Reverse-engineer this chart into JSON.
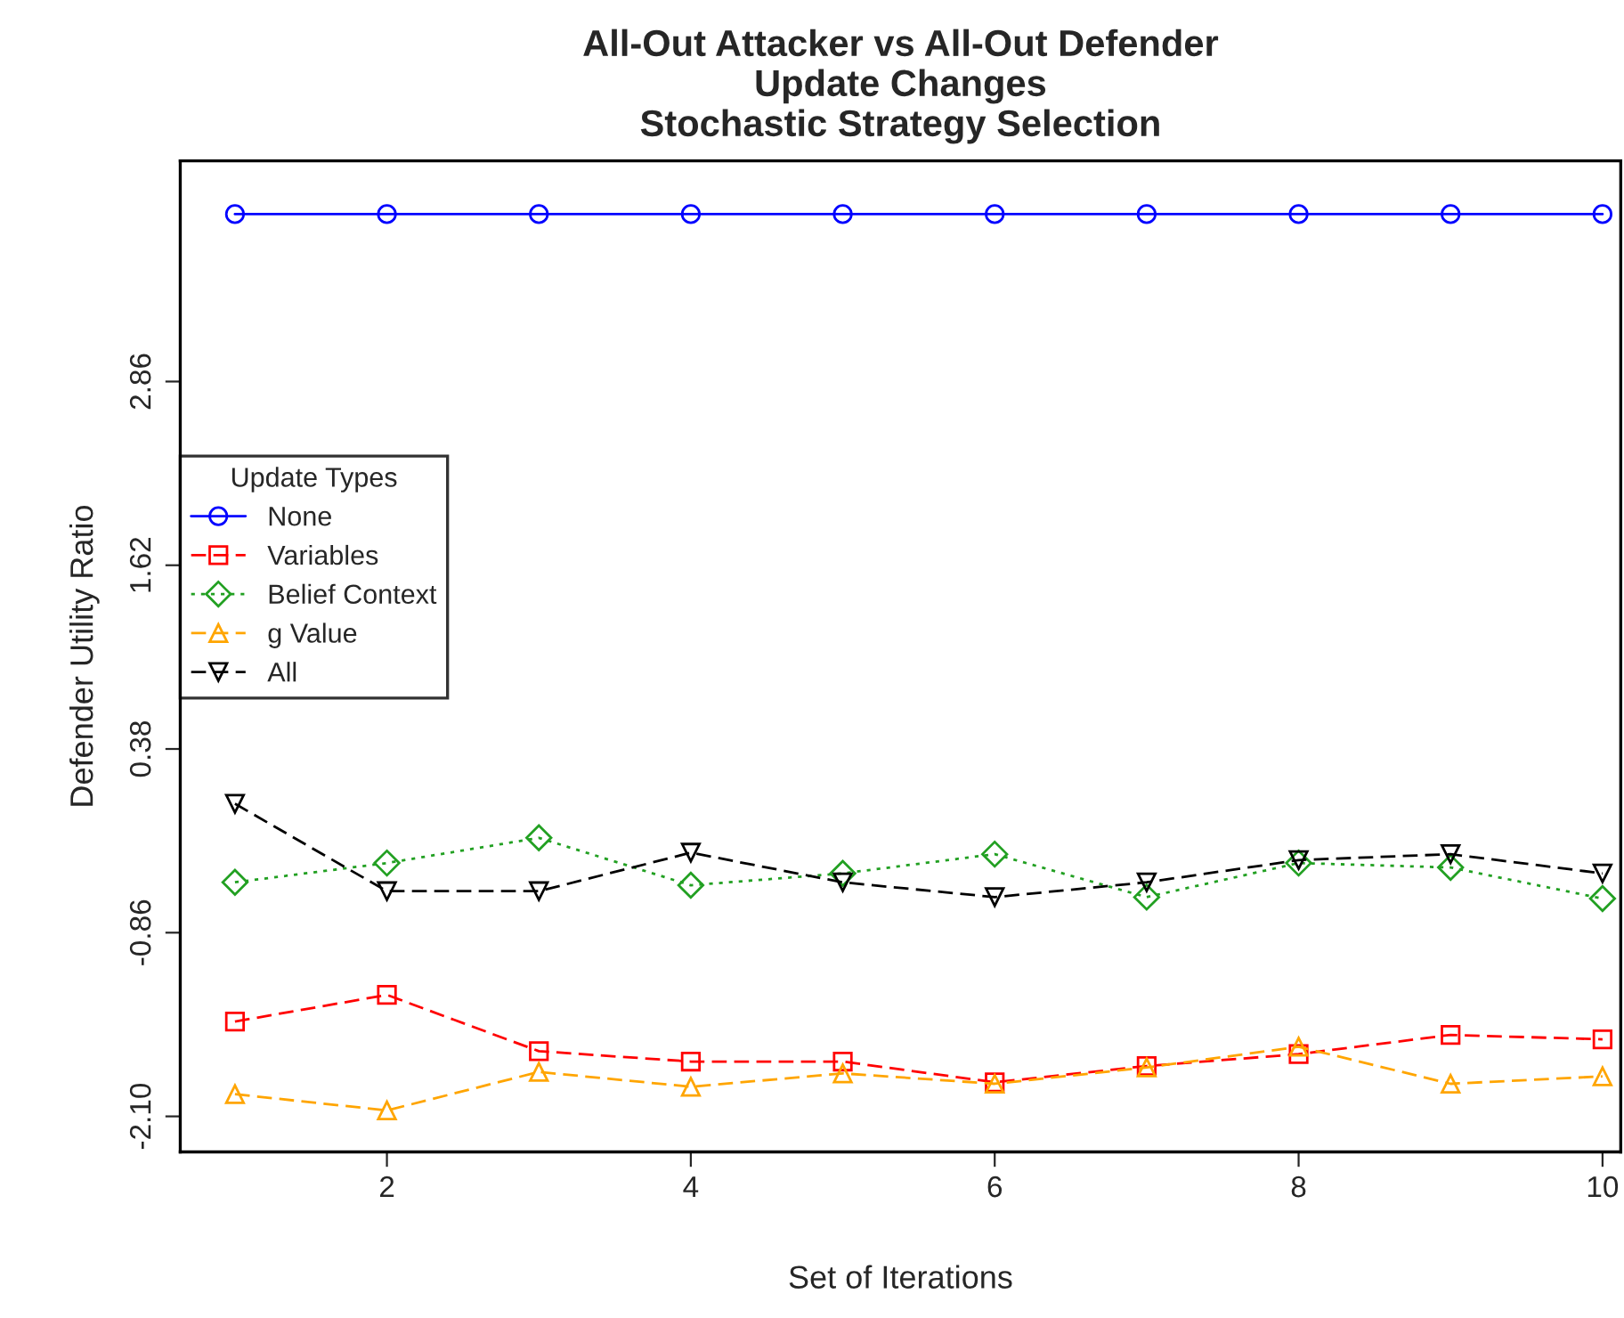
{
  "chart_data": {
    "type": "line",
    "title": "All-Out Attacker vs All-Out Defender\nUpdate Changes\nStochastic Strategy Selection",
    "xlabel": "Set of Iterations",
    "ylabel": "Defender Utility Ratio",
    "legend_title": "Update Types",
    "x": [
      1,
      2,
      3,
      4,
      5,
      6,
      7,
      8,
      9,
      10
    ],
    "series": [
      {
        "name": "None",
        "color": "#0000ff",
        "marker": "circle",
        "line_style": "solid",
        "values": [
          3.99,
          3.99,
          3.99,
          3.99,
          3.99,
          3.99,
          3.99,
          3.99,
          3.99,
          3.99
        ]
      },
      {
        "name": "Variables",
        "color": "#ff0000",
        "marker": "square",
        "line_style": "dashed",
        "values": [
          -1.46,
          -1.28,
          -1.66,
          -1.73,
          -1.73,
          -1.87,
          -1.76,
          -1.68,
          -1.55,
          -1.58
        ]
      },
      {
        "name": "Belief Context",
        "color": "#22a022",
        "marker": "diamond",
        "line_style": "dotted",
        "values": [
          -0.52,
          -0.39,
          -0.22,
          -0.54,
          -0.46,
          -0.33,
          -0.62,
          -0.39,
          -0.42,
          -0.63
        ]
      },
      {
        "name": "g Value",
        "color": "#ffa500",
        "marker": "triangle",
        "line_style": "dashed",
        "values": [
          -1.95,
          -2.06,
          -1.8,
          -1.9,
          -1.81,
          -1.88,
          -1.77,
          -1.63,
          -1.88,
          -1.83
        ]
      },
      {
        "name": "All",
        "color": "#000000",
        "marker": "triangle_down",
        "line_style": "dashed",
        "values": [
          0.01,
          -0.58,
          -0.58,
          -0.32,
          -0.52,
          -0.62,
          -0.52,
          -0.37,
          -0.33,
          -0.46
        ]
      }
    ],
    "xlim": [
      0.64,
      10.12
    ],
    "ylim": [
      -2.34,
      4.35
    ],
    "xticks": [
      2,
      4,
      6,
      8,
      10
    ],
    "yticks": [
      {
        "value": -2.1,
        "label": "-2.10"
      },
      {
        "value": -0.86,
        "label": "-0.86"
      },
      {
        "value": 0.38,
        "label": "0.38"
      },
      {
        "value": 1.62,
        "label": "1.62"
      },
      {
        "value": 2.86,
        "label": "2.86"
      }
    ],
    "grid": false,
    "legend": "left"
  }
}
